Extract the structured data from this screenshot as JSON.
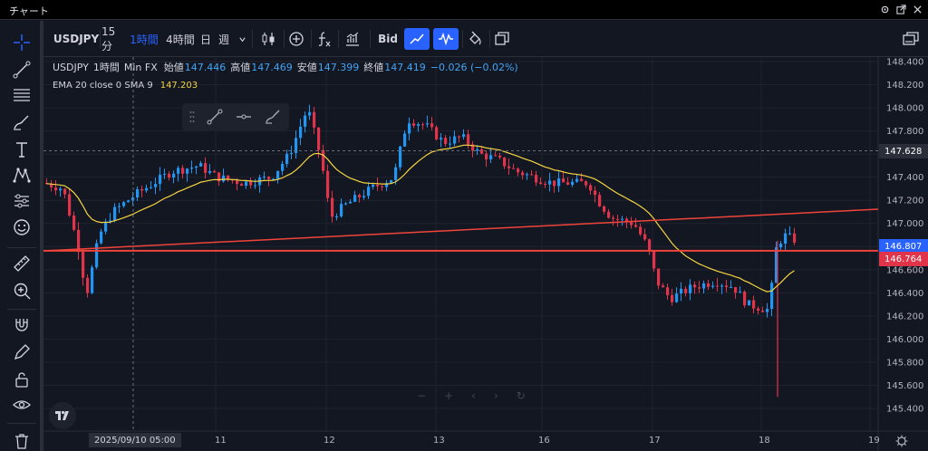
{
  "window": {
    "title": "チャート"
  },
  "toolbar": {
    "symbol": "USDJPY",
    "intervals": [
      "15分",
      "1時間",
      "4時間",
      "日",
      "週"
    ],
    "active_interval": "1時間",
    "price_source": "Bid"
  },
  "legend": {
    "symbol": "USDJPY",
    "interval": "1時間",
    "source": "Min FX",
    "open_label": "始値",
    "open": "147.446",
    "high_label": "高値",
    "high": "147.469",
    "low_label": "安値",
    "low": "147.399",
    "close_label": "終値",
    "close": "147.419",
    "change": "−0.026 (−0.02%)",
    "indicator": "EMA 20 close 0 SMA 9",
    "indicator_value": "147.203"
  },
  "price_axis": {
    "ticks": [
      "148.400",
      "148.200",
      "148.000",
      "147.800",
      "147.600",
      "147.400",
      "147.200",
      "147.000",
      "146.800",
      "146.600",
      "146.400",
      "146.200",
      "146.000",
      "145.800",
      "145.600",
      "145.400"
    ],
    "crosshair_label": "147.628",
    "last_price_label": "146.807",
    "line_price_label": "146.764"
  },
  "time_axis": {
    "crosshair_date": "2025/09/10   05:00",
    "labels": [
      "11",
      "12",
      "13",
      "16",
      "17",
      "18",
      "19"
    ]
  },
  "chart_data": {
    "type": "candlestick",
    "symbol": "USDJPY",
    "interval": "1時間",
    "ylim": [
      145.4,
      148.4
    ],
    "x_labels": [
      "11",
      "12",
      "13",
      "16",
      "17",
      "18",
      "19"
    ],
    "ema_value": 147.203,
    "horizontal_line": 146.764,
    "last_price": 146.807,
    "crosshair_price": 147.628
  },
  "colors": {
    "bull": "#2196f3",
    "bear": "#e0344b",
    "ema": "#f5d442",
    "trendline": "#f0443a",
    "background": "#131722"
  }
}
